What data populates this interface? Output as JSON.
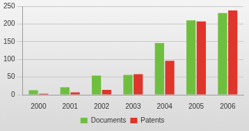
{
  "chart_data": {
    "type": "bar",
    "categories": [
      "2000",
      "2001",
      "2002",
      "2003",
      "2004",
      "2005",
      "2006"
    ],
    "series": [
      {
        "name": "Documents",
        "color": "#6fbf3f",
        "values": [
          13,
          21,
          54,
          56,
          146,
          210,
          231
        ]
      },
      {
        "name": "Patents",
        "color": "#e0352b",
        "values": [
          3,
          7,
          14,
          58,
          96,
          207,
          238
        ]
      }
    ],
    "ylim": [
      0,
      250
    ],
    "yticks": [
      0,
      50,
      100,
      150,
      200,
      250
    ],
    "grid": true,
    "legend": "bottom"
  }
}
